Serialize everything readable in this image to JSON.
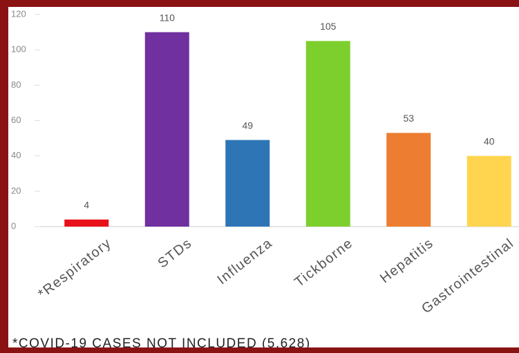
{
  "chart_data": {
    "type": "bar",
    "categories": [
      "*Respiratory",
      "STDs",
      "Influenza",
      "Tickborne",
      "Hepatitis",
      "Gastrointestinal"
    ],
    "values": [
      4,
      110,
      49,
      105,
      53,
      40
    ],
    "colors": [
      "#e8101a",
      "#7030a0",
      "#2e75b6",
      "#7dcf2e",
      "#ed7d31",
      "#ffd54f"
    ],
    "ylim": [
      0,
      120
    ],
    "yticks": [
      0,
      20,
      40,
      60,
      80,
      100,
      120
    ],
    "grid": false,
    "footnote": "*COVID-19 CASES NOT INCLUDED (5,628)"
  }
}
